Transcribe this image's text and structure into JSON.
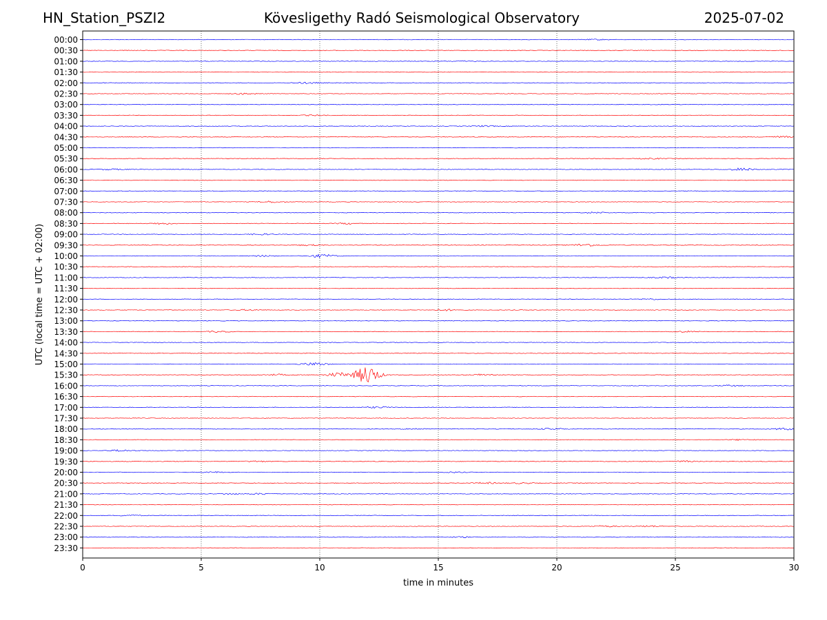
{
  "header": {
    "station": "HN_Station_PSZI2",
    "observatory": "Kövesligethy Radó Seismological Observatory",
    "date": "2025-07-02"
  },
  "colors": {
    "hour_trace": "#0000ff",
    "half_hour_trace": "#ff0000",
    "grid": "#000000"
  },
  "chart_data": {
    "type": "line",
    "title": "",
    "xlabel": "time in minutes",
    "ylabel": "UTC (local time = UTC + 02:00)",
    "xlim": [
      0,
      30
    ],
    "x_ticks": [
      0,
      5,
      10,
      15,
      20,
      25,
      30
    ],
    "grid": "vertical dotted at x ticks",
    "rows": [
      "00:00",
      "00:30",
      "01:00",
      "01:30",
      "02:00",
      "02:30",
      "03:00",
      "03:30",
      "04:00",
      "04:30",
      "05:00",
      "05:30",
      "06:00",
      "06:30",
      "07:00",
      "07:30",
      "08:00",
      "08:30",
      "09:00",
      "09:30",
      "10:00",
      "10:30",
      "11:00",
      "11:30",
      "12:00",
      "12:30",
      "13:00",
      "13:30",
      "14:00",
      "14:30",
      "15:00",
      "15:30",
      "16:00",
      "16:30",
      "17:00",
      "17:30",
      "18:00",
      "18:30",
      "19:00",
      "19:30",
      "20:00",
      "20:30",
      "21:00",
      "21:30",
      "22:00",
      "22:30",
      "23:00",
      "23:30"
    ],
    "row_colors": "alternating: hour rows blue, half-hour rows red",
    "events": [
      {
        "row": "00:00",
        "minute": 21.7,
        "amp": 0.2
      },
      {
        "row": "01:00",
        "minute": 16.0,
        "amp": 0.2
      },
      {
        "row": "02:00",
        "minute": 9.5,
        "amp": 0.3
      },
      {
        "row": "02:30",
        "minute": 6.8,
        "amp": 0.3
      },
      {
        "row": "03:30",
        "minute": 9.7,
        "amp": 0.2
      },
      {
        "row": "04:00",
        "minute": 17.0,
        "amp": 0.25
      },
      {
        "row": "04:30",
        "minute": 29.5,
        "amp": 0.35
      },
      {
        "row": "05:30",
        "minute": 24.0,
        "amp": 0.25
      },
      {
        "row": "06:00",
        "minute": 1.2,
        "amp": 0.25
      },
      {
        "row": "06:00",
        "minute": 27.8,
        "amp": 0.6
      },
      {
        "row": "07:30",
        "minute": 8.0,
        "amp": 0.35
      },
      {
        "row": "08:00",
        "minute": 21.6,
        "amp": 0.3
      },
      {
        "row": "08:30",
        "minute": 3.3,
        "amp": 0.35
      },
      {
        "row": "08:30",
        "minute": 11.2,
        "amp": 0.3
      },
      {
        "row": "09:00",
        "minute": 7.5,
        "amp": 0.3
      },
      {
        "row": "09:30",
        "minute": 21.2,
        "amp": 0.6
      },
      {
        "row": "09:30",
        "minute": 9.5,
        "amp": 0.25
      },
      {
        "row": "10:00",
        "minute": 10.1,
        "amp": 0.7
      },
      {
        "row": "10:00",
        "minute": 7.6,
        "amp": 0.25
      },
      {
        "row": "11:00",
        "minute": 24.6,
        "amp": 0.35
      },
      {
        "row": "12:00",
        "minute": 24.0,
        "amp": 0.25
      },
      {
        "row": "12:30",
        "minute": 15.3,
        "amp": 0.35
      },
      {
        "row": "12:30",
        "minute": 7.0,
        "amp": 0.25
      },
      {
        "row": "13:30",
        "minute": 5.7,
        "amp": 0.3
      },
      {
        "row": "13:30",
        "minute": 25.4,
        "amp": 0.3
      },
      {
        "row": "15:00",
        "minute": 9.8,
        "amp": 0.7
      },
      {
        "row": "15:30",
        "minute": 12.0,
        "amp": 4.0
      },
      {
        "row": "15:30",
        "minute": 10.8,
        "amp": 1.0
      },
      {
        "row": "15:30",
        "minute": 8.2,
        "amp": 0.35
      },
      {
        "row": "15:30",
        "minute": 16.9,
        "amp": 0.4
      },
      {
        "row": "16:00",
        "minute": 27.3,
        "amp": 0.3
      },
      {
        "row": "17:00",
        "minute": 12.5,
        "amp": 0.35
      },
      {
        "row": "18:00",
        "minute": 19.8,
        "amp": 0.4
      },
      {
        "row": "18:00",
        "minute": 29.6,
        "amp": 0.4
      },
      {
        "row": "18:00",
        "minute": 14.0,
        "amp": 0.3
      },
      {
        "row": "18:30",
        "minute": 27.8,
        "amp": 0.25
      },
      {
        "row": "19:00",
        "minute": 1.6,
        "amp": 0.35
      },
      {
        "row": "19:30",
        "minute": 7.3,
        "amp": 0.25
      },
      {
        "row": "19:30",
        "minute": 25.4,
        "amp": 0.3
      },
      {
        "row": "20:00",
        "minute": 5.5,
        "amp": 0.25
      },
      {
        "row": "20:00",
        "minute": 15.6,
        "amp": 0.2
      },
      {
        "row": "20:30",
        "minute": 17.0,
        "amp": 0.3
      },
      {
        "row": "20:30",
        "minute": 18.5,
        "amp": 0.25
      },
      {
        "row": "21:00",
        "minute": 6.2,
        "amp": 0.3
      },
      {
        "row": "21:00",
        "minute": 7.6,
        "amp": 0.3
      },
      {
        "row": "22:00",
        "minute": 2.0,
        "amp": 0.25
      },
      {
        "row": "22:30",
        "minute": 22.0,
        "amp": 0.3
      },
      {
        "row": "22:30",
        "minute": 23.9,
        "amp": 0.3
      },
      {
        "row": "23:00",
        "minute": 16.0,
        "amp": 0.2
      }
    ]
  }
}
